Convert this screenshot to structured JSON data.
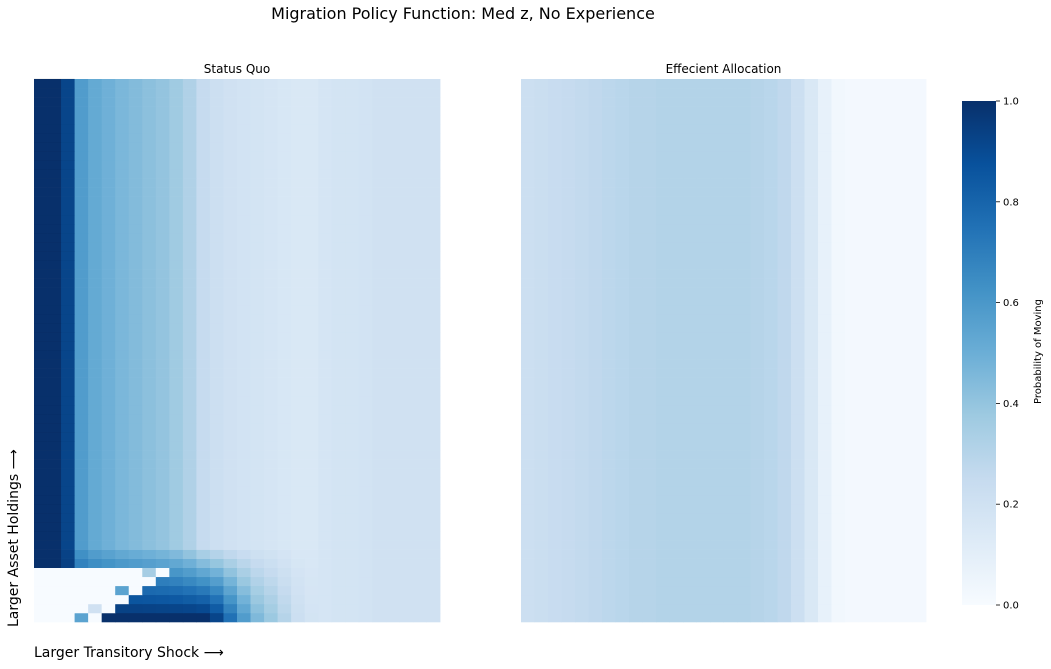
{
  "suptitle": "Migration Policy Function: Med z, No Experience",
  "ylabel": "Larger Asset Holdings ⟶",
  "xlabel": "Larger Transitory Shock ⟶",
  "colormap": [
    "#f7fbff",
    "#deebf7",
    "#c6dbef",
    "#9ecae1",
    "#6baed6",
    "#4292c6",
    "#2171b5",
    "#08519c",
    "#08306b"
  ],
  "chart_data": {
    "type": "heatmap",
    "panels": [
      {
        "title": "Status Quo",
        "n_cols": 30,
        "n_rows": 60,
        "column_profile": [
          1.0,
          1.0,
          0.92,
          0.58,
          0.52,
          0.49,
          0.46,
          0.44,
          0.42,
          0.4,
          0.37,
          0.32,
          0.25,
          0.22,
          0.2,
          0.19,
          0.18,
          0.17,
          0.16,
          0.15,
          0.15,
          0.17,
          0.18,
          0.18,
          0.19,
          0.2,
          0.2,
          0.2,
          0.2,
          0.2
        ],
        "bottom_profile": [
          1.0,
          1.0,
          1.0,
          1.0,
          1.0,
          1.0,
          1.0,
          1.0,
          1.0,
          1.0,
          1.0,
          1.0,
          1.0,
          0.92,
          0.75,
          0.58,
          0.45,
          0.38,
          0.3,
          0.22,
          0.18,
          0.17,
          0.18,
          0.18,
          0.19,
          0.2,
          0.2,
          0.2,
          0.2,
          0.2
        ],
        "zero_cells": [
          [
            0,
            4
          ],
          [
            1,
            5
          ],
          [
            2,
            6
          ],
          [
            3,
            7
          ],
          [
            4,
            8
          ],
          [
            5,
            9
          ]
        ],
        "partial_cells": [
          [
            0,
            3,
            0.55
          ],
          [
            1,
            4,
            0.2
          ],
          [
            3,
            6,
            0.55
          ],
          [
            5,
            8,
            0.35
          ]
        ]
      },
      {
        "title": "Effecient Allocation",
        "n_cols": 30,
        "n_rows": 60,
        "column_profile": [
          0.22,
          0.23,
          0.24,
          0.25,
          0.26,
          0.27,
          0.28,
          0.29,
          0.3,
          0.3,
          0.31,
          0.31,
          0.31,
          0.31,
          0.31,
          0.31,
          0.31,
          0.3,
          0.29,
          0.27,
          0.22,
          0.15,
          0.08,
          0.03,
          0.02,
          0.02,
          0.02,
          0.02,
          0.02,
          0.02
        ]
      }
    ],
    "colorbar": {
      "label": "Probability of Moving",
      "range": [
        0.0,
        1.0
      ],
      "ticks": [
        "0.0",
        "0.2",
        "0.4",
        "0.6",
        "0.8",
        "1.0"
      ]
    }
  }
}
